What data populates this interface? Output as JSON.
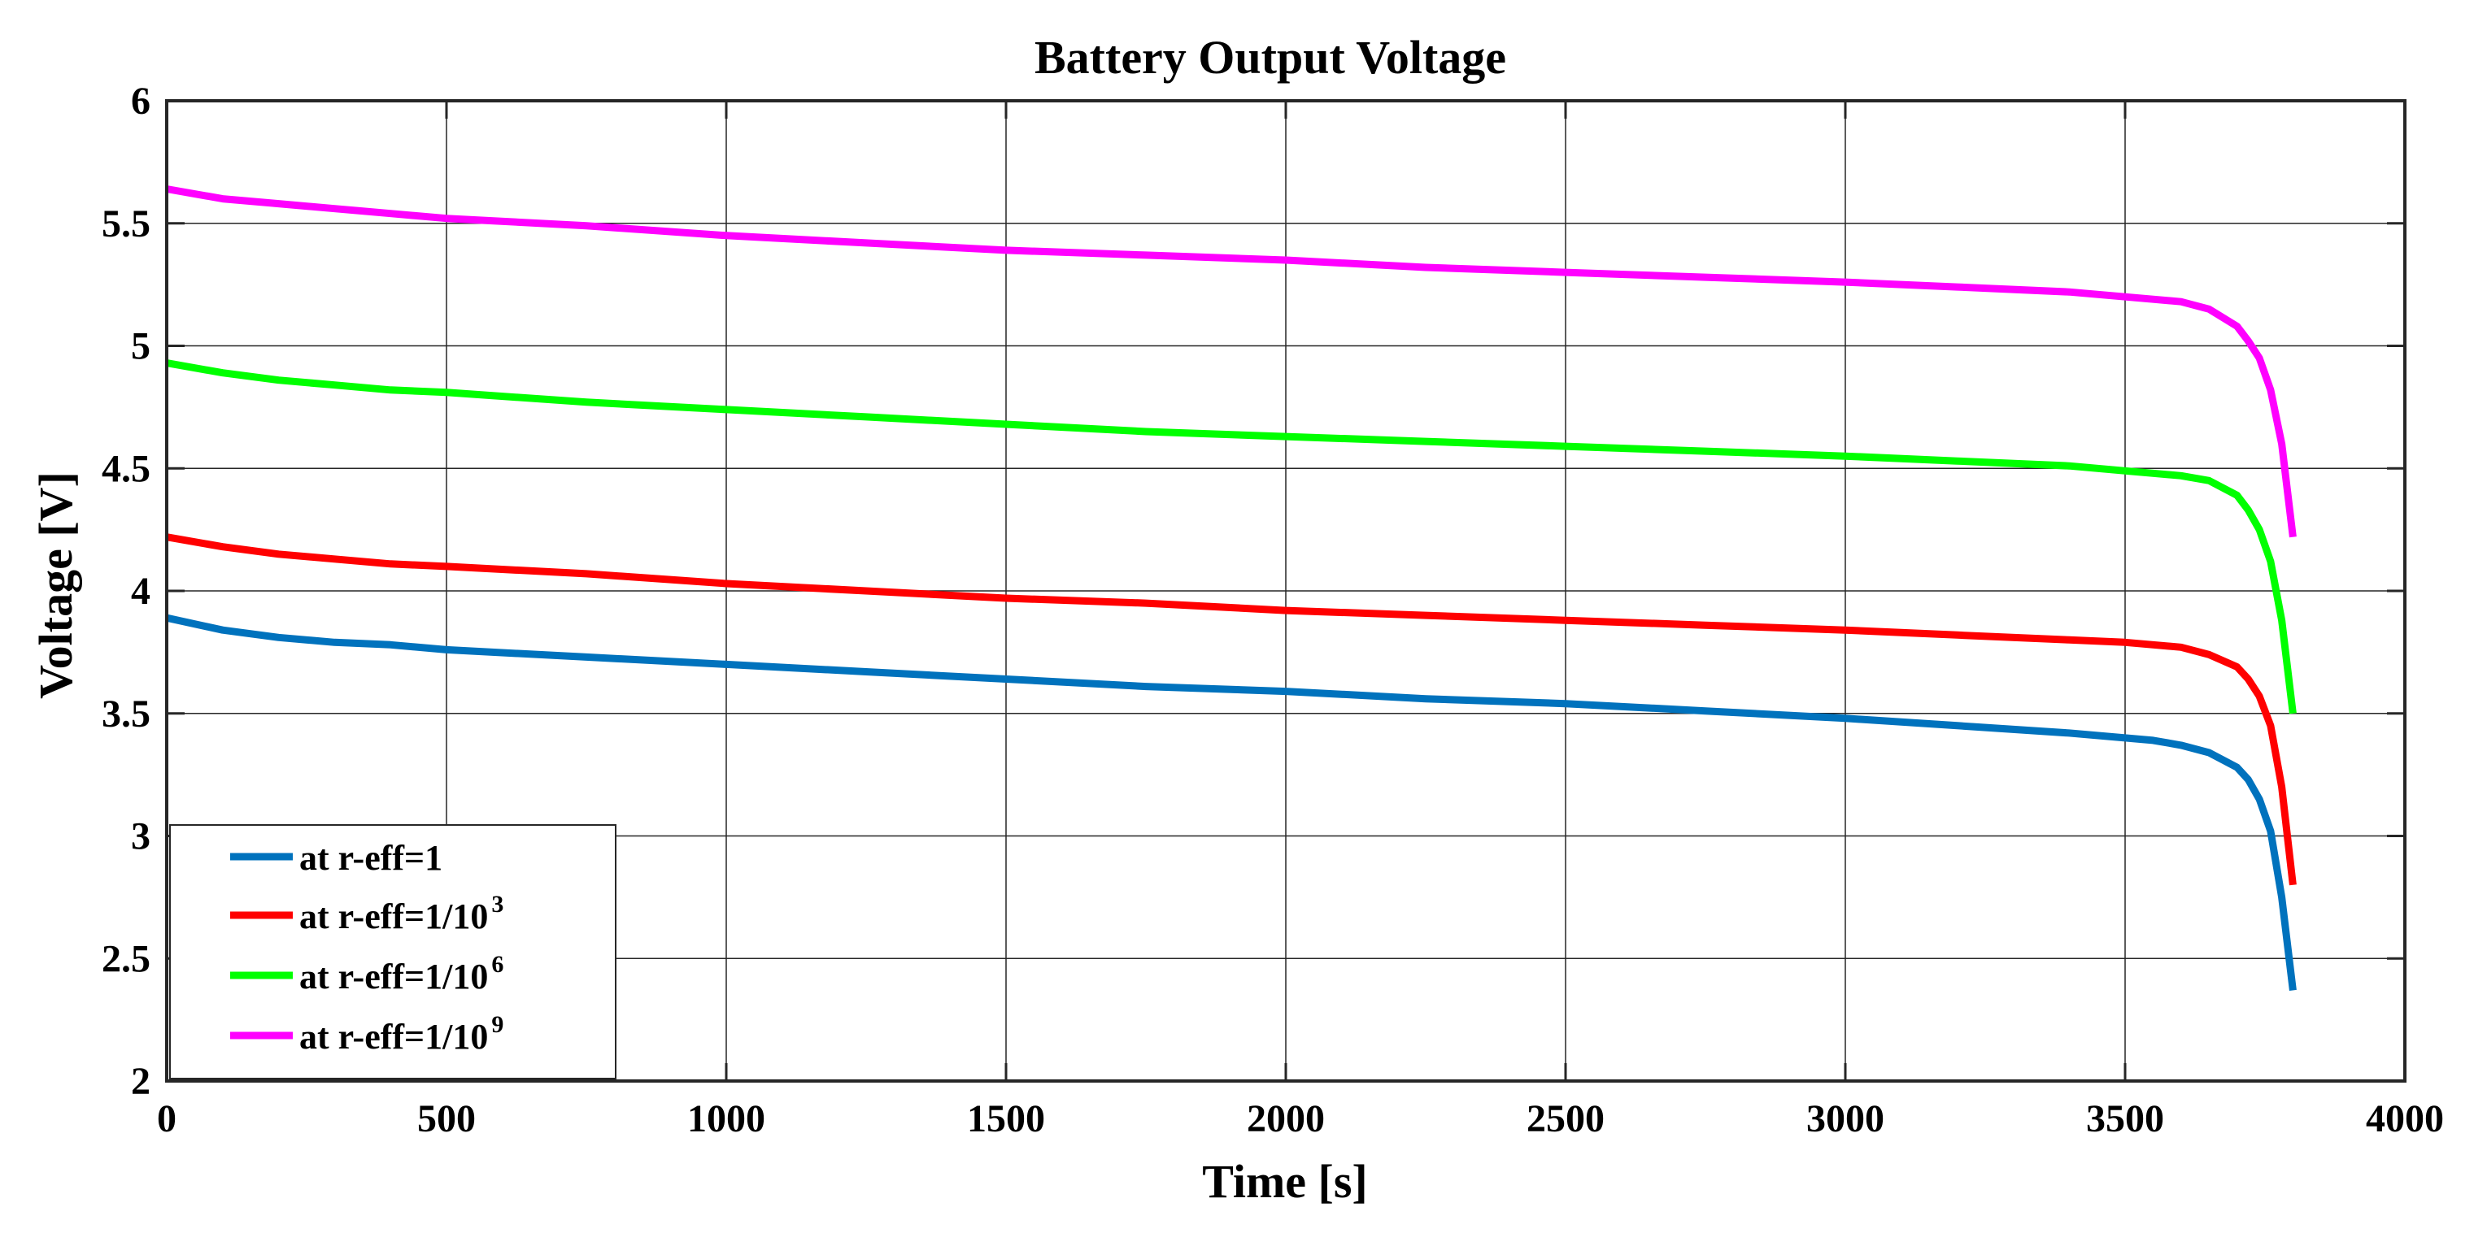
{
  "chart_data": {
    "type": "line",
    "title": "Battery Output  Voltage",
    "xlabel": "Time [s]",
    "ylabel": "Voltage [V]",
    "xlim": [
      0,
      4000
    ],
    "ylim": [
      2,
      6
    ],
    "xticks": [
      0,
      500,
      1000,
      1500,
      2000,
      2500,
      3000,
      3500,
      4000
    ],
    "xtick_labels": [
      "0",
      "500",
      "1000",
      "1500",
      "2000",
      "2500",
      "3000",
      "3500",
      "4000"
    ],
    "yticks": [
      2,
      2.5,
      3,
      3.5,
      4,
      4.5,
      5,
      5.5,
      6
    ],
    "ytick_labels": [
      "2",
      "2.5",
      "3",
      "3.5",
      "4",
      "4.5",
      "5",
      "5.5",
      "6"
    ],
    "grid": true,
    "legend_position": "bottom-left",
    "x": [
      0,
      100,
      200,
      300,
      400,
      500,
      750,
      1000,
      1250,
      1500,
      1750,
      2000,
      2250,
      2500,
      2750,
      3000,
      3200,
      3400,
      3500,
      3550,
      3600,
      3650,
      3700,
      3720,
      3740,
      3760,
      3780,
      3800
    ],
    "series": [
      {
        "name": "at r-eff=1",
        "legend_text": "at r-eff=1",
        "legend_sup": "",
        "color": "#0072BD",
        "values": [
          3.89,
          3.84,
          3.81,
          3.79,
          3.78,
          3.76,
          3.73,
          3.7,
          3.67,
          3.64,
          3.61,
          3.59,
          3.56,
          3.54,
          3.51,
          3.48,
          3.45,
          3.42,
          3.4,
          3.39,
          3.37,
          3.34,
          3.28,
          3.23,
          3.15,
          3.02,
          2.75,
          2.37
        ]
      },
      {
        "name": "at r-eff=1/10^3",
        "legend_text": "at r-eff=1/10",
        "legend_sup": "3",
        "color": "#FF0000",
        "values": [
          4.22,
          4.18,
          4.15,
          4.13,
          4.11,
          4.1,
          4.07,
          4.03,
          4.0,
          3.97,
          3.95,
          3.92,
          3.9,
          3.88,
          3.86,
          3.84,
          3.82,
          3.8,
          3.79,
          3.78,
          3.77,
          3.74,
          3.69,
          3.64,
          3.57,
          3.45,
          3.2,
          2.8
        ]
      },
      {
        "name": "at r-eff=1/10^6",
        "legend_text": "at r-eff=1/10",
        "legend_sup": "6",
        "color": "#00FF00",
        "values": [
          4.93,
          4.89,
          4.86,
          4.84,
          4.82,
          4.81,
          4.77,
          4.74,
          4.71,
          4.68,
          4.65,
          4.63,
          4.61,
          4.59,
          4.57,
          4.55,
          4.53,
          4.51,
          4.49,
          4.48,
          4.47,
          4.45,
          4.39,
          4.33,
          4.25,
          4.12,
          3.88,
          3.5
        ]
      },
      {
        "name": "at r-eff=1/10^9",
        "legend_text": "at r-eff=1/10",
        "legend_sup": "9",
        "color": "#FF00FF",
        "values": [
          5.64,
          5.6,
          5.58,
          5.56,
          5.54,
          5.52,
          5.49,
          5.45,
          5.42,
          5.39,
          5.37,
          5.35,
          5.32,
          5.3,
          5.28,
          5.26,
          5.24,
          5.22,
          5.2,
          5.19,
          5.18,
          5.15,
          5.08,
          5.02,
          4.95,
          4.82,
          4.6,
          4.22
        ]
      }
    ]
  }
}
